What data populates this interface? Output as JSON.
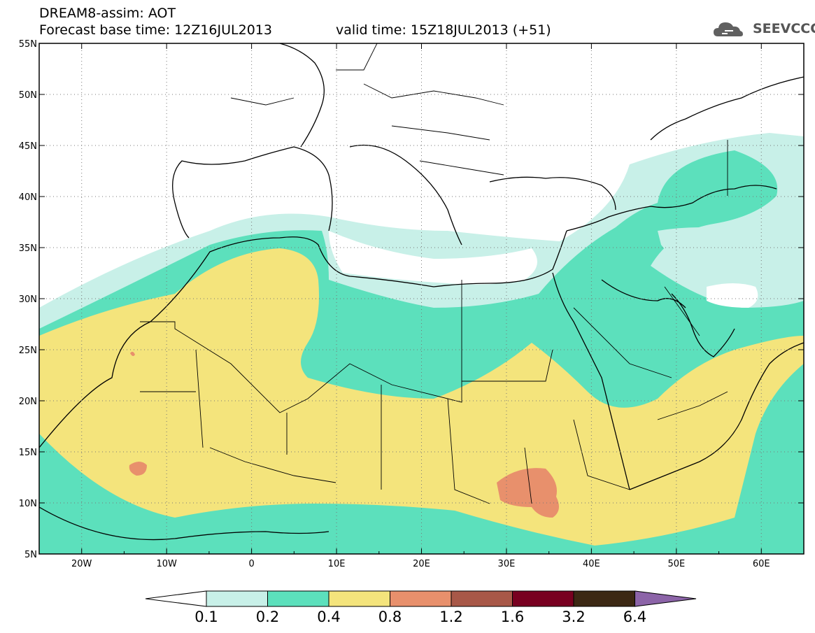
{
  "header": {
    "line1": "DREAM8-assim: AOT",
    "line2": "Forecast base time: 12Z16JUL2013",
    "valid": "valid time: 15Z18JUL2013 (+51)"
  },
  "logo": {
    "text": "SEEVCCC",
    "icon": "cloud-logo-icon"
  },
  "map": {
    "lon_range": [
      -25,
      65
    ],
    "lat_range": [
      5,
      55
    ],
    "lon_labels": [
      "20W",
      "10W",
      "0",
      "10E",
      "20E",
      "30E",
      "40E",
      "50E",
      "60E"
    ],
    "lat_labels": [
      "55N",
      "50N",
      "45N",
      "40N",
      "35N",
      "30N",
      "25N",
      "20N",
      "15N",
      "10N",
      "5N"
    ],
    "grid": "dotted"
  },
  "legend": {
    "labels": [
      "0.1",
      "0.2",
      "0.4",
      "0.8",
      "1.2",
      "1.6",
      "3.2",
      "6.4"
    ],
    "colors": [
      "#ffffff",
      "#c8f0e8",
      "#5ce0bc",
      "#f4e47c",
      "#e8906c",
      "#a85848",
      "#780020",
      "#3c2814",
      "#8c64a8"
    ]
  }
}
